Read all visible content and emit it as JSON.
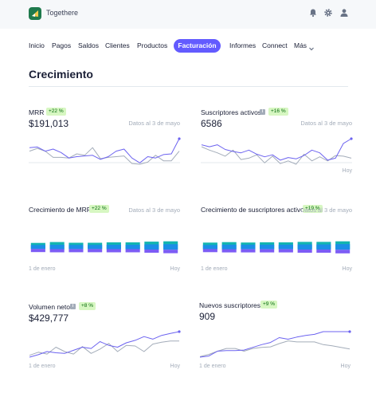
{
  "app": {
    "name": "Togethere"
  },
  "icons": {
    "logo": "logo-icon",
    "notifications": "bell-icon",
    "settings": "gear-icon",
    "account": "user-icon",
    "more": "chevron-down-icon"
  },
  "colors": {
    "accent": "#635bff",
    "badge_bg": "#d7f7c2",
    "badge_text": "#05690d",
    "line_primary": "#6c63f0",
    "line_secondary": "#a3acb9",
    "bar_teal": "#12b5b0",
    "bar_blue": "#1b8ee6",
    "bar_purple": "#7c5cf5"
  },
  "nav": {
    "items": [
      "Inicio",
      "Pagos",
      "Saldos",
      "Clientes",
      "Productos",
      "Facturación",
      "Informes",
      "Connect",
      "Más"
    ],
    "active": "Facturación"
  },
  "page": {
    "title": "Crecimiento"
  },
  "cards": {
    "mrr": {
      "title": "MRR",
      "badge": "+22 %",
      "value": "$191,013",
      "date": "Datos al 3 de mayo"
    },
    "subs": {
      "title": "Suscriptores activos",
      "badge": "+16 %",
      "value": "6586",
      "date": "Datos al 3 de mayo",
      "axis_end": "Hoy"
    },
    "mrr_growth": {
      "title": "Crecimiento de MRR",
      "badge": "+22 %",
      "date": "Datos al 3 de mayo",
      "axis_start": "1 de enero",
      "axis_end": "Hoy"
    },
    "subs_growth": {
      "title": "Crecimiento de suscriptores activos",
      "badge": "+19 %",
      "date": "Datos al 3 de mayo",
      "axis_start": "1 de enero",
      "axis_end": "Hoy"
    },
    "net_volume": {
      "title": "Volumen neto",
      "badge": "+8 %",
      "value": "$429,777",
      "axis_start": "1 de enero",
      "axis_end": "Hoy"
    },
    "new_subs": {
      "title": "Nuevos suscriptores",
      "badge": "+9 %",
      "value": "909",
      "axis_start": "1 de enero",
      "axis_end": "Hoy"
    }
  },
  "chart_data": [
    {
      "type": "line",
      "name": "MRR",
      "series": [
        {
          "values": [
            57,
            58,
            52,
            55,
            50,
            42,
            44,
            45,
            46,
            40,
            44,
            52,
            55,
            42,
            35,
            44,
            42,
            47,
            48,
            70
          ]
        },
        {
          "values": [
            52,
            56,
            52,
            43,
            43,
            42,
            48,
            46,
            57,
            41,
            43,
            44,
            45,
            34,
            33,
            36,
            46,
            38,
            38,
            52
          ]
        }
      ]
    },
    {
      "type": "line",
      "name": "Suscriptores activos",
      "series": [
        {
          "values": [
            60,
            57,
            60,
            53,
            50,
            48,
            52,
            46,
            42,
            45,
            37,
            41,
            39,
            44,
            52,
            48,
            37,
            40,
            62,
            69
          ]
        },
        {
          "values": [
            57,
            52,
            48,
            43,
            52,
            38,
            40,
            45,
            33,
            43,
            32,
            36,
            31,
            46,
            36,
            42,
            36,
            44,
            43,
            40
          ]
        }
      ]
    },
    {
      "type": "bar",
      "name": "Crecimiento de MRR",
      "categories": [
        "1",
        "2",
        "3",
        "4",
        "5",
        "6",
        "7",
        "8"
      ],
      "series": [
        {
          "values": [
            22,
            28,
            22,
            22,
            25,
            25,
            28,
            30
          ]
        },
        {
          "values": [
            14,
            16,
            15,
            15,
            16,
            16,
            19,
            20
          ]
        },
        {
          "values": [
            6,
            8,
            8,
            8,
            8,
            12,
            15,
            20
          ]
        }
      ]
    },
    {
      "type": "bar",
      "name": "Crecimiento de suscriptores activos",
      "categories": [
        "1",
        "2",
        "3",
        "4",
        "5",
        "6",
        "7",
        "8"
      ],
      "series": [
        {
          "values": [
            24,
            26,
            22,
            24,
            23,
            25,
            25,
            28
          ]
        },
        {
          "values": [
            14,
            16,
            16,
            16,
            16,
            18,
            18,
            20
          ]
        },
        {
          "values": [
            8,
            9,
            8,
            8,
            12,
            14,
            16,
            20
          ]
        }
      ]
    },
    {
      "type": "line",
      "name": "Volumen neto",
      "series": [
        {
          "values": [
            24,
            28,
            33,
            31,
            30,
            35,
            40,
            38,
            49,
            43,
            40,
            47,
            51,
            57,
            53,
            59,
            62,
            65
          ]
        },
        {
          "values": [
            27,
            32,
            29,
            40,
            33,
            29,
            41,
            30,
            37,
            46,
            33,
            43,
            42,
            33,
            45,
            48,
            50,
            50
          ]
        }
      ]
    },
    {
      "type": "line",
      "name": "Nuevos suscriptores",
      "series": [
        {
          "values": [
            22,
            24,
            33,
            34,
            34,
            35,
            40,
            45,
            49,
            58,
            55,
            59,
            62,
            64,
            69,
            69,
            69,
            69
          ]
        },
        {
          "values": [
            23,
            27,
            33,
            38,
            38,
            33,
            38,
            40,
            41,
            47,
            52,
            50,
            50,
            50,
            45,
            43,
            40,
            37
          ]
        }
      ]
    }
  ]
}
